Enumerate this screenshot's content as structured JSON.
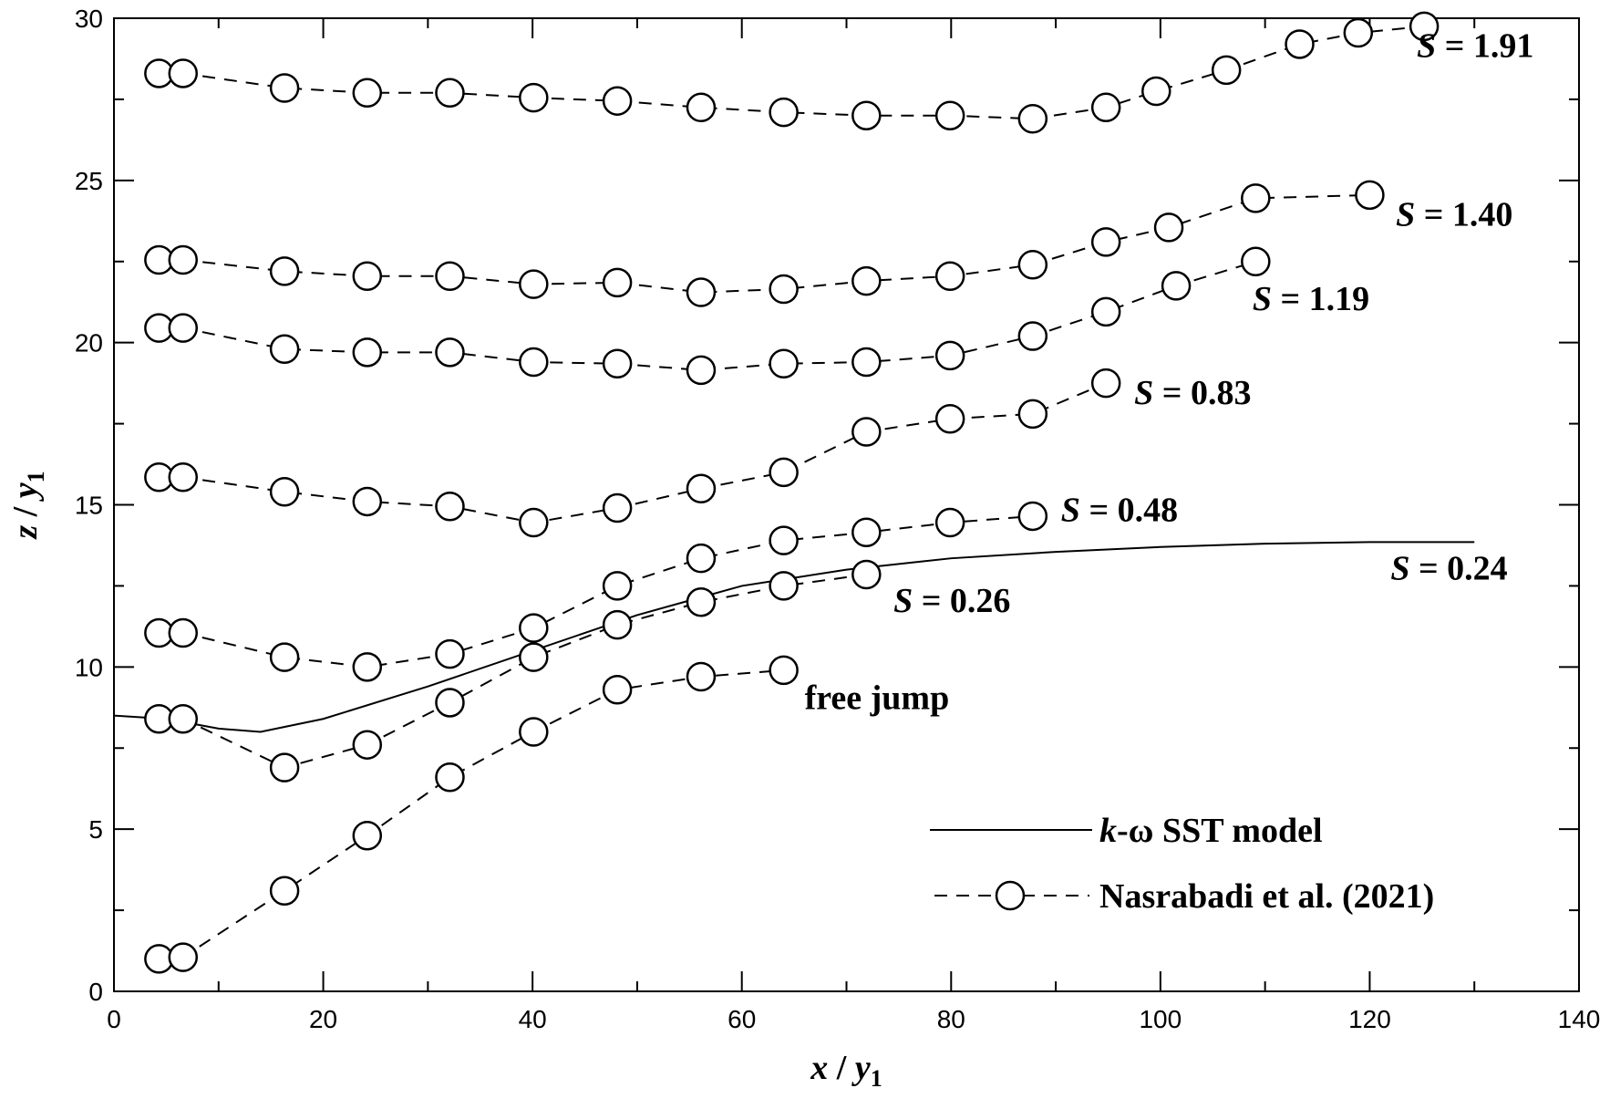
{
  "chart_data": {
    "type": "scatter",
    "xlabel": {
      "var": "x",
      "sep": " / ",
      "base": "y",
      "sub": "1"
    },
    "ylabel": {
      "var": "z",
      "sep": " / ",
      "base": "y",
      "sub": "1"
    },
    "xlim": [
      0,
      140
    ],
    "ylim": [
      0,
      30
    ],
    "xticks": [
      0,
      20,
      40,
      60,
      80,
      100,
      120,
      140
    ],
    "yticks": [
      0,
      5,
      10,
      15,
      20,
      25,
      30
    ],
    "xminor_step": 10,
    "yminor_step": 2.5,
    "grid": false,
    "legend_position": "bottom-right",
    "legend": [
      {
        "style": "solid-line",
        "pre": "k",
        "mid": "-ω SST model"
      },
      {
        "style": "dashed-circle",
        "pre": "",
        "mid": "Nasrabadi et al. (2021)"
      }
    ],
    "model": {
      "style": "solid-line",
      "x": [
        0,
        5,
        10,
        14,
        20,
        30,
        40,
        50,
        60,
        70,
        80,
        90,
        100,
        110,
        120,
        130
      ],
      "y": [
        8.5,
        8.4,
        8.1,
        8.0,
        8.4,
        9.4,
        10.5,
        11.6,
        12.5,
        13.0,
        13.35,
        13.55,
        13.7,
        13.8,
        13.85,
        13.85
      ],
      "annotation": {
        "pre": "S",
        "post": " = 0.24",
        "x": 122,
        "y": 12.7
      }
    },
    "series": [
      {
        "style": "dashed-circle",
        "x": [
          4.3,
          6.6,
          16.3,
          24.2,
          32.1,
          40.1,
          48.1,
          56.1,
          64.0
        ],
        "y": [
          1.0,
          1.05,
          3.1,
          4.8,
          6.6,
          8.0,
          9.3,
          9.7,
          9.9
        ],
        "annotation": {
          "pre": "free jump",
          "post": "",
          "x": 66,
          "y": 8.7
        }
      },
      {
        "style": "dashed-circle",
        "x": [
          4.3,
          6.6,
          16.3,
          24.2,
          32.1,
          40.1,
          48.1,
          56.1,
          64.0,
          71.9
        ],
        "y": [
          8.4,
          8.4,
          6.9,
          7.6,
          8.9,
          10.3,
          11.3,
          12.0,
          12.5,
          12.85
        ],
        "annotation": {
          "pre": "S",
          "post": " = 0.26",
          "x": 74.5,
          "y": 11.7
        }
      },
      {
        "style": "dashed-circle",
        "x": [
          4.3,
          6.6,
          16.3,
          24.2,
          32.1,
          40.1,
          48.1,
          56.1,
          64.0,
          71.9,
          79.9,
          87.8
        ],
        "y": [
          11.05,
          11.05,
          10.3,
          10.0,
          10.4,
          11.2,
          12.5,
          13.35,
          13.9,
          14.15,
          14.45,
          14.65
        ],
        "annotation": {
          "pre": "S",
          "post": " = 0.48",
          "x": 90.5,
          "y": 14.5
        }
      },
      {
        "style": "dashed-circle",
        "x": [
          4.3,
          6.6,
          16.3,
          24.2,
          32.1,
          40.1,
          48.1,
          56.1,
          64.0,
          71.9,
          79.9,
          87.8,
          94.8
        ],
        "y": [
          15.85,
          15.85,
          15.4,
          15.1,
          14.95,
          14.45,
          14.9,
          15.5,
          16.0,
          17.25,
          17.65,
          17.8,
          18.75
        ],
        "annotation": {
          "pre": "S",
          "post": " = 0.83",
          "x": 97.5,
          "y": 18.1
        }
      },
      {
        "style": "dashed-circle",
        "x": [
          4.3,
          6.6,
          16.3,
          24.2,
          32.1,
          40.1,
          48.1,
          56.1,
          64.0,
          71.9,
          79.9,
          87.8,
          94.8,
          101.5,
          109.1
        ],
        "y": [
          20.45,
          20.45,
          19.8,
          19.7,
          19.7,
          19.4,
          19.35,
          19.15,
          19.35,
          19.4,
          19.6,
          20.2,
          20.95,
          21.75,
          22.5
        ],
        "annotation": {
          "pre": "S",
          "post": " = 1.19",
          "x": 108.8,
          "y": 21.0
        }
      },
      {
        "style": "dashed-circle",
        "x": [
          4.3,
          6.6,
          16.3,
          24.2,
          32.1,
          40.1,
          48.1,
          56.1,
          64.0,
          71.9,
          79.9,
          87.8,
          94.8,
          100.8,
          109.1,
          120.0
        ],
        "y": [
          22.55,
          22.55,
          22.2,
          22.05,
          22.05,
          21.8,
          21.85,
          21.55,
          21.65,
          21.9,
          22.05,
          22.4,
          23.1,
          23.55,
          24.45,
          24.55
        ],
        "annotation": {
          "pre": "S",
          "post": " = 1.40",
          "x": 122.5,
          "y": 23.6
        }
      },
      {
        "style": "dashed-circle",
        "x": [
          4.3,
          6.6,
          16.3,
          24.2,
          32.1,
          40.1,
          48.1,
          56.1,
          64.0,
          71.9,
          79.9,
          87.8,
          94.8,
          99.6,
          106.3,
          113.3,
          118.9,
          125.2
        ],
        "y": [
          28.3,
          28.3,
          27.85,
          27.7,
          27.7,
          27.55,
          27.45,
          27.25,
          27.1,
          27.0,
          27.0,
          26.9,
          27.25,
          27.75,
          28.4,
          29.2,
          29.55,
          29.75
        ],
        "annotation": {
          "pre": "S",
          "post": " = 1.91",
          "x": 124.5,
          "y": 28.8
        }
      }
    ]
  }
}
